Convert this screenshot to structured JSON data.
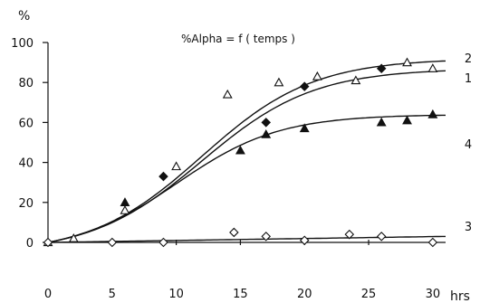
{
  "chart_data": {
    "type": "scatter",
    "title": "%Alpha = f ( temps )",
    "xlabel": "hrs",
    "ylabel": "%",
    "xlim": [
      0,
      31
    ],
    "ylim": [
      0,
      100
    ],
    "x_ticks": [
      0,
      5,
      10,
      15,
      20,
      25,
      30
    ],
    "y_ticks": [
      0,
      20,
      40,
      60,
      80,
      100
    ],
    "grid": false,
    "legend": "right",
    "series": [
      {
        "name": "1",
        "marker": "filled-diamond",
        "points": [
          [
            9,
            33
          ],
          [
            17,
            60
          ],
          [
            20,
            78
          ],
          [
            26,
            87
          ]
        ],
        "curve": {
          "model": "logistic",
          "plateau": 87,
          "rate": 0.23,
          "midpoint": 12
        }
      },
      {
        "name": "2",
        "marker": "open-triangle",
        "points": [
          [
            0,
            0
          ],
          [
            2,
            2
          ],
          [
            6,
            16
          ],
          [
            10,
            38
          ],
          [
            14,
            74
          ],
          [
            18,
            80
          ],
          [
            21,
            83
          ],
          [
            24,
            81
          ],
          [
            28,
            90
          ],
          [
            30,
            87
          ]
        ],
        "curve": {
          "model": "logistic",
          "plateau": 92,
          "rate": 0.23,
          "midpoint": 12
        }
      },
      {
        "name": "4",
        "marker": "filled-triangle",
        "points": [
          [
            6,
            20
          ],
          [
            15,
            46
          ],
          [
            17,
            54
          ],
          [
            20,
            57
          ],
          [
            26,
            60
          ],
          [
            28,
            61
          ],
          [
            30,
            64
          ]
        ],
        "curve": {
          "model": "logistic",
          "plateau": 64,
          "rate": 0.25,
          "midpoint": 10
        }
      },
      {
        "name": "3",
        "marker": "open-diamond",
        "points": [
          [
            0,
            0
          ],
          [
            5,
            0
          ],
          [
            9,
            0
          ],
          [
            14.5,
            5
          ],
          [
            17,
            3
          ],
          [
            20,
            1
          ],
          [
            23.5,
            4
          ],
          [
            26,
            3
          ],
          [
            30,
            0
          ]
        ],
        "curve": {
          "model": "linear",
          "start": 0,
          "end": 3
        }
      }
    ]
  }
}
